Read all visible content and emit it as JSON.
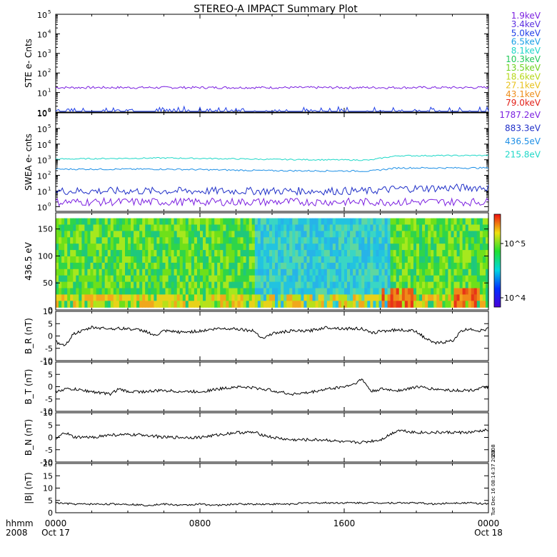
{
  "title": "STEREO-A IMPACT Summary Plot",
  "footer": {
    "row1_label": "hhmm",
    "row2_label": "2008",
    "ticks": [
      "0000",
      "0800",
      "1600",
      "0000"
    ],
    "dates": [
      "Oct 17",
      "",
      "",
      "Oct 18"
    ]
  },
  "side_text": {
    "panel6": "2008",
    "panel7": "Tue Dec 16 08:14:37 2008"
  },
  "colors": {
    "axis": "#000000",
    "trace": "#000000"
  },
  "chart_data": [
    {
      "type": "line",
      "ylabel": "STE e- Cnts",
      "yscale": "log",
      "ylim": [
        1,
        100000
      ],
      "ytick_exponents": [
        0,
        1,
        2,
        3,
        4,
        5
      ],
      "xlim_hours": [
        0,
        24
      ],
      "legend": [
        {
          "label": "1.9keV",
          "color": "#7b1fe0"
        },
        {
          "label": "3.4keV",
          "color": "#5a2ee0"
        },
        {
          "label": "5.0keV",
          "color": "#1f3ee8"
        },
        {
          "label": "6.5keV",
          "color": "#1aa0e6"
        },
        {
          "label": "8.1keV",
          "color": "#1fd6c8"
        },
        {
          "label": "10.3keV",
          "color": "#21c95a"
        },
        {
          "label": "13.5keV",
          "color": "#6fd21e"
        },
        {
          "label": "18.6keV",
          "color": "#b7d81a"
        },
        {
          "label": "27.1keV",
          "color": "#e8c21c"
        },
        {
          "label": "43.1keV",
          "color": "#ee8d1a"
        },
        {
          "label": "79.0keV",
          "color": "#e22018"
        }
      ],
      "series": [
        {
          "name": "1.9keV",
          "level": 18,
          "color": "#7b1fe0"
        },
        {
          "name": "5.0keV",
          "level": 1.1,
          "color": "#1f3ee8"
        }
      ]
    },
    {
      "type": "line",
      "ylabel": "SWEA e- cnts",
      "yscale": "log",
      "ylim": [
        0.5,
        1000000
      ],
      "ytick_exponents": [
        0,
        1,
        2,
        3,
        4,
        5,
        6
      ],
      "xlim_hours": [
        0,
        24
      ],
      "legend": [
        {
          "label": "1787.2eV",
          "color": "#7b1fe0"
        },
        {
          "label": "883.3eV",
          "color": "#1f2fc8"
        },
        {
          "label": "436.5eV",
          "color": "#1f90e6"
        },
        {
          "label": "215.8eV",
          "color": "#1fd8c8"
        }
      ],
      "series": [
        {
          "name": "215.8eV",
          "x": [
            0,
            6,
            12,
            17.5,
            19,
            24
          ],
          "y": [
            1100,
            1300,
            1050,
            950,
            1800,
            1900
          ],
          "color": "#1fd8c8"
        },
        {
          "name": "436.5eV",
          "x": [
            0,
            6,
            12,
            17.5,
            19,
            24
          ],
          "y": [
            250,
            250,
            200,
            190,
            300,
            300
          ],
          "color": "#1f90e6"
        },
        {
          "name": "883.3eV",
          "x": [
            0,
            6,
            12,
            17.5,
            19,
            24
          ],
          "y": [
            10,
            10,
            10,
            10,
            14,
            17
          ],
          "color": "#1f2fc8"
        },
        {
          "name": "1787.2eV",
          "x": [
            0,
            24
          ],
          "y": [
            2,
            2
          ],
          "color": "#7b1fe0"
        }
      ]
    },
    {
      "type": "heatmap",
      "ylabel": "436.5 eV",
      "ylim": [
        0,
        180
      ],
      "yticks": [
        0,
        50,
        100,
        150
      ],
      "xlim_hours": [
        0,
        24
      ],
      "colorbar": {
        "scale": "log",
        "ticks": [
          "10^4",
          "10^5"
        ]
      },
      "regions": [
        {
          "x_hours": [
            0,
            11
          ],
          "tone": "green"
        },
        {
          "x_hours": [
            11,
            18.5
          ],
          "tone": "cyan"
        },
        {
          "x_hours": [
            18.5,
            24
          ],
          "tone": "green"
        },
        {
          "x_hours": [
            18,
            20
          ],
          "tone": "red-low-angle"
        },
        {
          "x_hours": [
            22,
            23.5
          ],
          "tone": "red-low-angle"
        }
      ]
    },
    {
      "type": "line",
      "ylabel": "B_R (nT)",
      "ylim": [
        -10,
        10
      ],
      "yticks": [
        -10,
        -5,
        0,
        5,
        10
      ],
      "x": [
        0,
        0.3,
        0.6,
        1,
        1.5,
        2,
        3,
        4,
        5,
        5.5,
        6,
        7,
        8,
        9,
        10,
        11,
        11.5,
        12,
        13,
        14,
        15,
        16,
        17,
        17.5,
        18,
        19,
        20,
        20.5,
        21,
        22,
        22.5,
        23,
        23.5,
        24
      ],
      "y": [
        -2,
        -4,
        -3,
        1,
        2,
        3.5,
        3,
        3,
        2,
        0,
        2,
        1.5,
        2,
        3,
        3,
        2,
        -1,
        1,
        2,
        2,
        3.5,
        3,
        3,
        1,
        2,
        2.5,
        2,
        -1,
        -3,
        -2,
        2,
        3,
        2,
        3
      ]
    },
    {
      "type": "line",
      "ylabel": "B_T (nT)",
      "ylim": [
        -10,
        10
      ],
      "yticks": [
        -10,
        -5,
        0,
        5,
        10
      ],
      "x": [
        0,
        0.5,
        1,
        2,
        3,
        3.5,
        4,
        5,
        6,
        7,
        8,
        9,
        10,
        11,
        12,
        13,
        14,
        15,
        16,
        16.5,
        17,
        17.5,
        18,
        19,
        19.5,
        20,
        21,
        22,
        23,
        24
      ],
      "y": [
        -2,
        -1,
        -1,
        -2,
        -3,
        -1,
        -2,
        -2,
        -1.5,
        -2,
        -2,
        -1,
        0,
        -0.5,
        -1.5,
        -3,
        -2.5,
        -1,
        0,
        1,
        3,
        -2,
        -1,
        -1.5,
        -1,
        0,
        -1,
        -1.5,
        -1.5,
        0
      ]
    },
    {
      "type": "line",
      "ylabel": "B_N (nT)",
      "ylim": [
        -10,
        10
      ],
      "yticks": [
        -10,
        -5,
        0,
        5,
        10
      ],
      "x": [
        0,
        0.5,
        1,
        2,
        3,
        4,
        5,
        6,
        7,
        8,
        9,
        10,
        11,
        12,
        13,
        14,
        15,
        16,
        17,
        18,
        18.5,
        19,
        20,
        21,
        22,
        23,
        24
      ],
      "y": [
        -1,
        2,
        0,
        0,
        1,
        1,
        1,
        0,
        0,
        0,
        1,
        2,
        2,
        0,
        -1,
        -1,
        -1,
        -2,
        -2,
        -1,
        1,
        3,
        2,
        2,
        2,
        2,
        3
      ]
    },
    {
      "type": "line",
      "ylabel": "|B| (nT)",
      "ylim": [
        0,
        20
      ],
      "yticks": [
        0,
        5,
        10,
        15,
        20
      ],
      "x": [
        0,
        1,
        2,
        3,
        4,
        5,
        6,
        7,
        8,
        9,
        10,
        11,
        12,
        13,
        14,
        15,
        16,
        17,
        18,
        19,
        20,
        21,
        22,
        23,
        24
      ],
      "y": [
        4,
        3.5,
        3.5,
        3.5,
        3.5,
        3,
        3.5,
        3,
        3.5,
        3,
        3.5,
        3.5,
        3.5,
        3.5,
        4,
        4,
        4,
        4,
        4,
        4,
        4,
        3.5,
        4,
        4,
        3.5
      ]
    }
  ]
}
